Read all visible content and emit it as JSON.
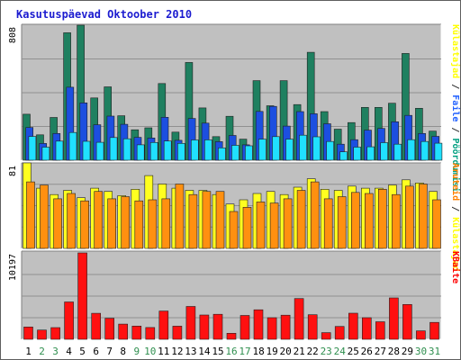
{
  "page": {
    "title": "Kasutuspäevad Oktoober 2010",
    "frame_color": "#5f5f5f",
    "panel_bg": "#c0c0c0",
    "title_color": "#1c1cd0"
  },
  "chart_data": {
    "type": "bar",
    "days": [
      1,
      2,
      3,
      4,
      5,
      6,
      7,
      8,
      9,
      10,
      11,
      12,
      13,
      14,
      15,
      16,
      17,
      18,
      19,
      20,
      21,
      22,
      23,
      24,
      25,
      26,
      27,
      28,
      29,
      30,
      31
    ],
    "day_label_colors": {
      "weekday": "#000000",
      "weekend": "#2f8f4f"
    },
    "weekend_days": [
      2,
      3,
      9,
      10,
      16,
      17,
      23,
      24,
      30,
      31
    ],
    "panels": [
      {
        "id": "top",
        "ymax": 808,
        "ymax_label": "808",
        "right_label_parts": [
          {
            "text": "Külastajad",
            "color": "#ffff00"
          },
          {
            "text": " / ",
            "color": "#303030"
          },
          {
            "text": "Faile",
            "color": "#2060ff"
          },
          {
            "text": " / ",
            "color": "#303030"
          },
          {
            "text": "Pöördumisi",
            "color": "#00a080"
          }
        ],
        "series": [
          {
            "key": "hits",
            "color": "#1f8060",
            "values": [
              275,
              152,
              256,
              763,
              808,
              373,
              439,
              266,
              182,
              194,
              459,
              168,
              585,
              313,
              141,
              263,
              126,
              476,
              326,
              476,
              333,
              646,
              291,
              186,
              225,
              316,
              316,
              341,
              639,
              311,
              174
            ]
          },
          {
            "key": "files",
            "color": "#1c4fe0",
            "values": [
              196,
              100,
              160,
              437,
              343,
              212,
              264,
              215,
              137,
              133,
              257,
              119,
              250,
              222,
              111,
              148,
              92,
              292,
              322,
              204,
              291,
              278,
              218,
              96,
              123,
              180,
              190,
              230,
              268,
              160,
              143
            ]
          },
          {
            "key": "visitors",
            "color": "#20e0ff",
            "values": [
              142,
              78,
              114,
              166,
              113,
              107,
              136,
              128,
              92,
              106,
              115,
              101,
              121,
              122,
              74,
              89,
              86,
              126,
              141,
              126,
              150,
              140,
              112,
              50,
              78,
              80,
              105,
              96,
              123,
              112,
              102
            ]
          }
        ]
      },
      {
        "id": "middle",
        "ymax": 81,
        "ymax_label": "81",
        "right_label_parts": [
          {
            "text": "Aruteid",
            "color": "#ff8000"
          },
          {
            "text": " / ",
            "color": "#303030"
          },
          {
            "text": "Külastajad",
            "color": "#ffff00"
          }
        ],
        "series": [
          {
            "key": "visits",
            "color": "#ffff20",
            "values": [
              81,
              57,
              51,
              55,
              48,
              57,
              54,
              50,
              56,
              69,
              61,
              57,
              55,
              55,
              51,
              42,
              46,
              52,
              54,
              51,
              58,
              66,
              56,
              55,
              59,
              57,
              57,
              60,
              65,
              62,
              54
            ]
          },
          {
            "key": "sites",
            "color": "#ff9010",
            "values": [
              63,
              60,
              47,
              52,
              45,
              54,
              47,
              49,
              45,
              46,
              47,
              61,
              51,
              54,
              54,
              35,
              39,
              44,
              43,
              47,
              55,
              63,
              47,
              49,
              53,
              52,
              56,
              51,
              59,
              61,
              46
            ]
          }
        ]
      },
      {
        "id": "bottom",
        "ymax": 10197,
        "ymax_label": "10197",
        "right_label_parts": [
          {
            "text": "KBaite",
            "color": "#ff0000"
          }
        ],
        "series": [
          {
            "key": "kbytes",
            "color": "#ff1010",
            "values": [
              1452,
              1097,
              1384,
              4411,
              10197,
              3069,
              2484,
              1799,
              1561,
              1394,
              3330,
              1553,
              3874,
              2873,
              2949,
              716,
              2818,
              3489,
              2554,
              2849,
              4807,
              2905,
              785,
              1520,
              3082,
              2549,
              2068,
              4891,
              4109,
              1003,
              1994
            ]
          }
        ]
      }
    ]
  }
}
